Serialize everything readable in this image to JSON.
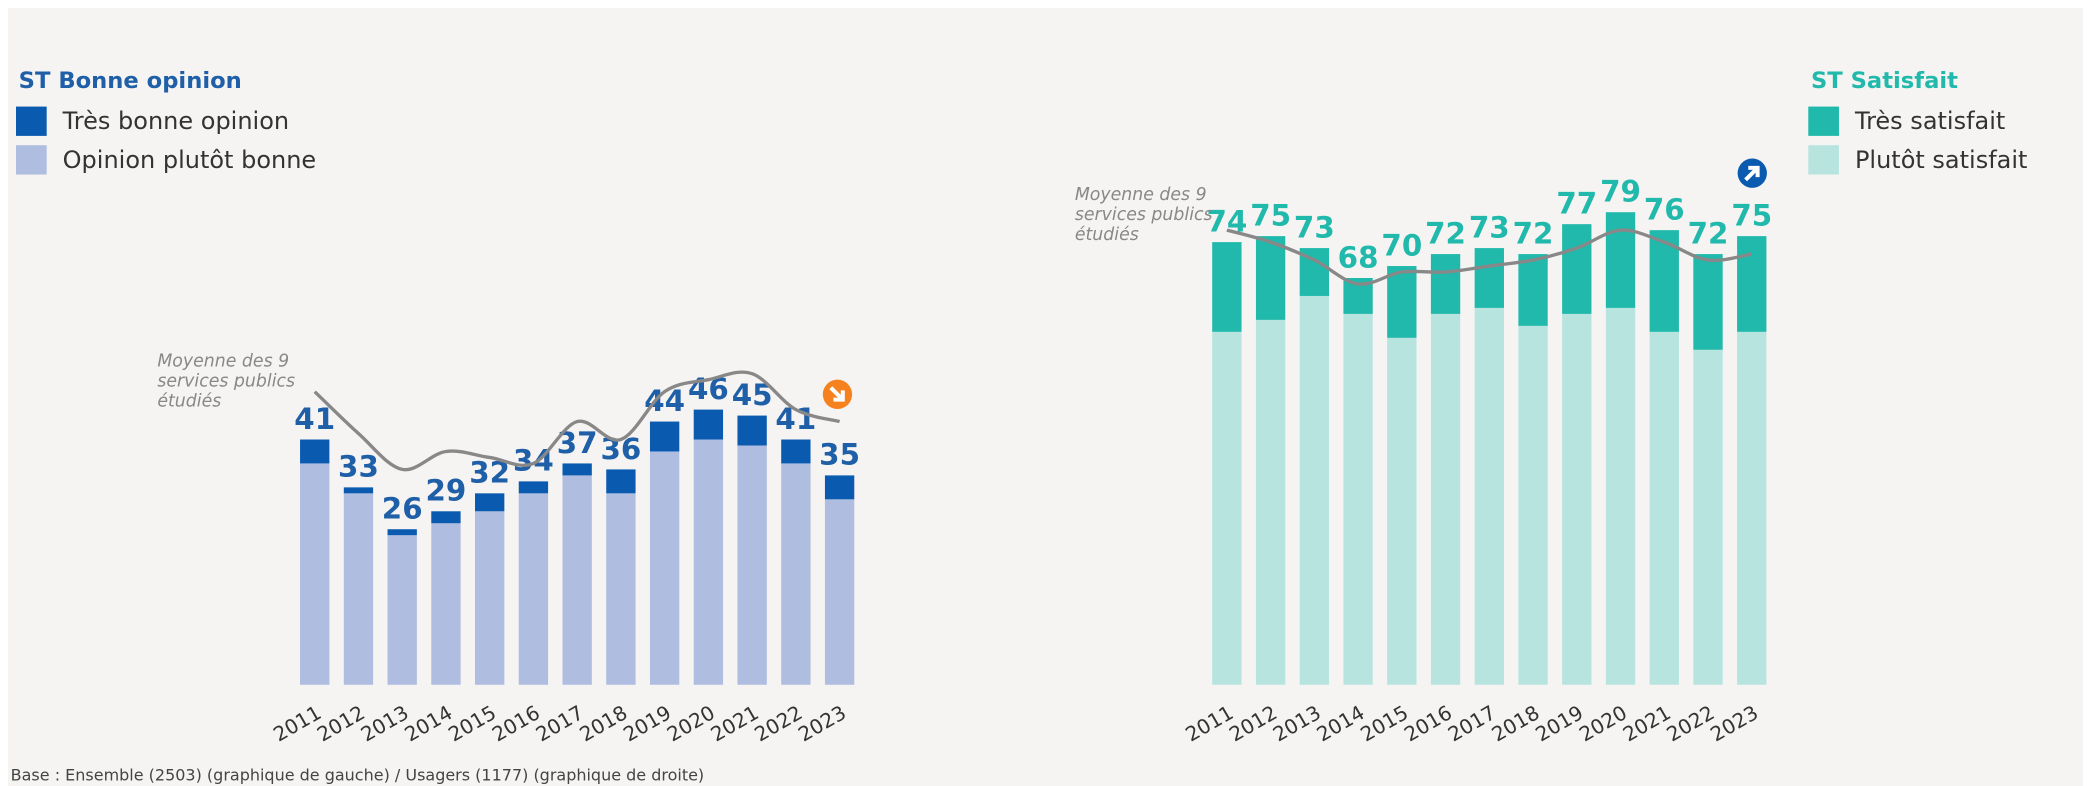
{
  "chart_data": [
    {
      "type": "bar",
      "stacked": true,
      "title": "ST Bonne opinion",
      "categories": [
        "2011",
        "2012",
        "2013",
        "2014",
        "2015",
        "2016",
        "2017",
        "2018",
        "2019",
        "2020",
        "2021",
        "2022",
        "2023"
      ],
      "series": [
        {
          "name": "Opinion plutôt bonne",
          "color": "#aebde0",
          "values": [
            37,
            32,
            25,
            27,
            29,
            32,
            35,
            32,
            39,
            41,
            40,
            37,
            31
          ]
        },
        {
          "name": "Très bonne opinion",
          "color": "#0a5bb0",
          "values": [
            4,
            1,
            1,
            2,
            3,
            2,
            2,
            4,
            5,
            5,
            5,
            4,
            4
          ]
        }
      ],
      "totals": [
        41,
        33,
        26,
        29,
        32,
        34,
        37,
        36,
        44,
        46,
        45,
        41,
        35
      ],
      "total_color": "#1e5fa8",
      "average": {
        "label": [
          "Moyenne des 9",
          "services publics",
          "étudiés"
        ],
        "color": "#888888",
        "values": [
          49,
          42,
          36,
          39,
          38,
          37,
          44,
          41,
          49,
          51,
          52,
          46,
          44
        ]
      },
      "trend": "down",
      "trend_color": "#f5821f"
    },
    {
      "type": "bar",
      "stacked": true,
      "title": "ST Satisfait",
      "categories": [
        "2011",
        "2012",
        "2013",
        "2014",
        "2015",
        "2016",
        "2017",
        "2018",
        "2019",
        "2020",
        "2021",
        "2022",
        "2023"
      ],
      "series": [
        {
          "name": "Plutôt satisfait",
          "color": "#b8e4df",
          "values": [
            59,
            61,
            65,
            62,
            58,
            62,
            63,
            60,
            62,
            63,
            59,
            56,
            59
          ]
        },
        {
          "name": "Très satisfait",
          "color": "#20b9ab",
          "values": [
            15,
            14,
            8,
            6,
            12,
            10,
            10,
            12,
            15,
            16,
            17,
            16,
            16
          ]
        }
      ],
      "totals": [
        74,
        75,
        73,
        68,
        70,
        72,
        73,
        72,
        77,
        79,
        76,
        72,
        75
      ],
      "total_color": "#20b9ab",
      "average": {
        "label": [
          "Moyenne des 9",
          "services publics",
          "étudiés"
        ],
        "color": "#888888",
        "values": [
          76,
          74,
          71,
          67,
          69,
          69,
          70,
          71,
          73,
          76,
          74,
          71,
          72
        ]
      },
      "trend": "up",
      "trend_color": "#0a5bb0"
    }
  ],
  "footer": "Base : Ensemble (2503) (graphique de gauche) / Usagers (1177) (graphique de droite)"
}
